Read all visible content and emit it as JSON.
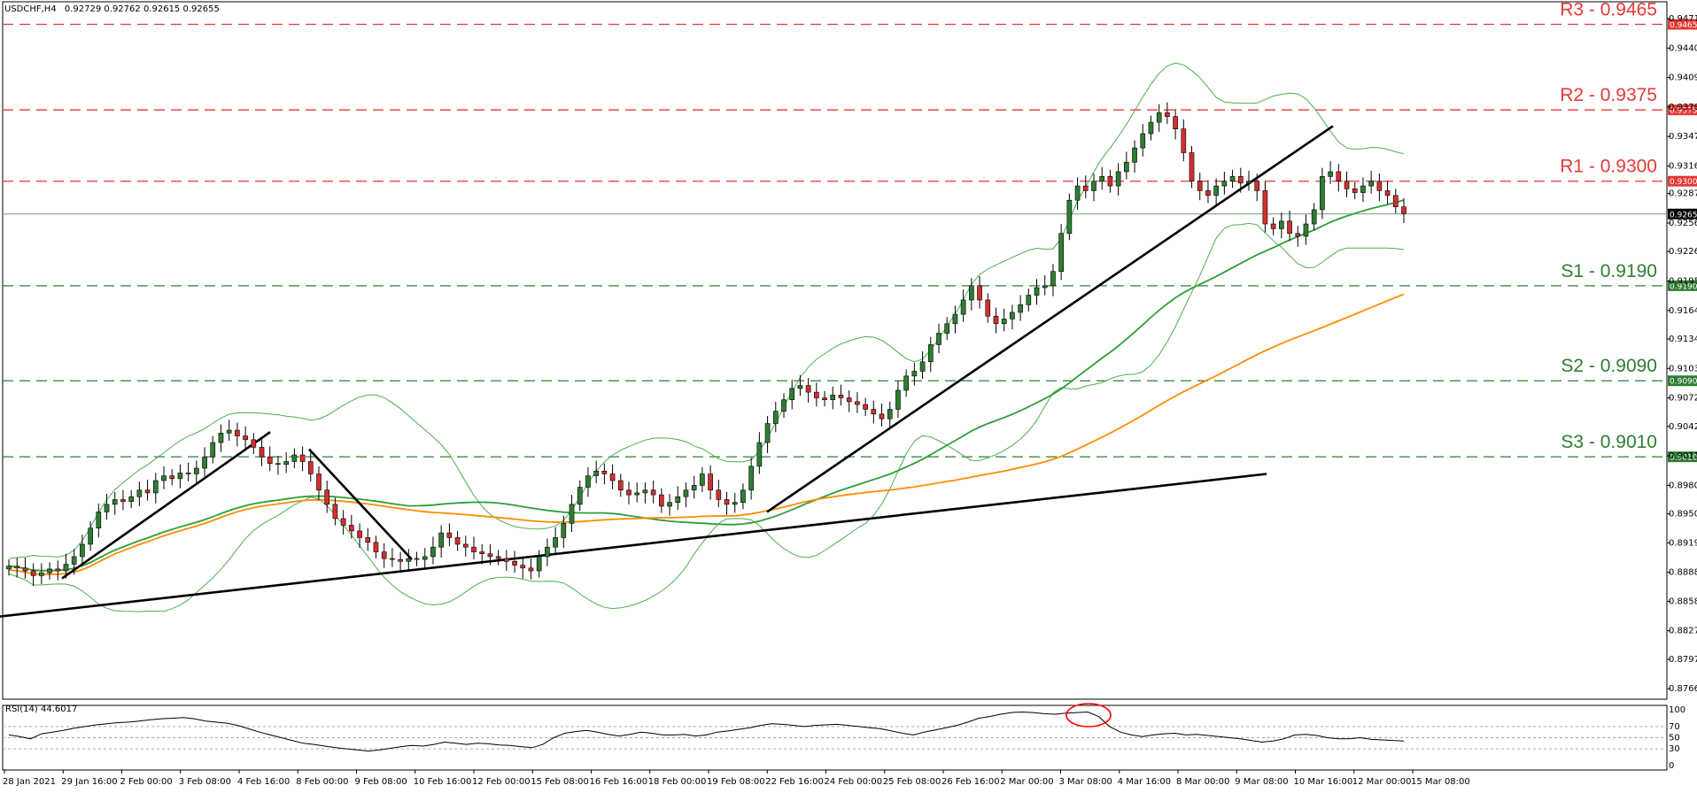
{
  "header": {
    "symbol": "USDCHF,H4",
    "ohlc": "0.92729 0.92762 0.92615 0.92655"
  },
  "rsi_header": "RSI(14) 44.6017",
  "colors": {
    "bull": "#2e7d32",
    "bear": "#d32f2f",
    "resistance": "#e53935",
    "support": "#2e7d32",
    "bands": "#4caf50",
    "ma_green": "#2e9e3a",
    "ma_orange": "#ff8c00",
    "price_line": "#7a9a7a",
    "rsi_marker": "#ff0000"
  },
  "chart_data": {
    "type": "candlestick",
    "title": "USDCHF,H4",
    "ylim": [
      0.8755,
      0.9472
    ],
    "y_ticks": [
      "0.94710",
      "0.94400",
      "0.94090",
      "0.93780",
      "0.93470",
      "0.93160",
      "0.92870",
      "0.92560",
      "0.92260",
      "0.91950",
      "0.91640",
      "0.91340",
      "0.91030",
      "0.90720",
      "0.90420",
      "0.90110",
      "0.89800",
      "0.89500",
      "0.89195",
      "0.88885",
      "0.88580",
      "0.88270",
      "0.87970",
      "0.87660"
    ],
    "x_ticks": [
      "28 Jan 2021",
      "29 Jan 16:00",
      "2 Feb 00:00",
      "3 Feb 08:00",
      "4 Feb 16:00",
      "8 Feb 00:00",
      "9 Feb 08:00",
      "10 Feb 16:00",
      "12 Feb 00:00",
      "15 Feb 08:00",
      "16 Feb 16:00",
      "18 Feb 00:00",
      "19 Feb 08:00",
      "22 Feb 16:00",
      "24 Feb 00:00",
      "25 Feb 08:00",
      "26 Feb 16:00",
      "2 Mar 00:00",
      "3 Mar 08:00",
      "4 Mar 16:00",
      "8 Mar 00:00",
      "9 Mar 08:00",
      "10 Mar 16:00",
      "12 Mar 00:00",
      "15 Mar 08:00"
    ],
    "current_price": 0.92655,
    "levels": [
      {
        "name": "R3 - 0.9465",
        "value": 0.9465,
        "tag": "0.94650",
        "kind": "resistance"
      },
      {
        "name": "R2 - 0.9375",
        "value": 0.9375,
        "tag": "0.93750",
        "kind": "resistance"
      },
      {
        "name": "R1 - 0.9300",
        "value": 0.93,
        "tag": "0.93000",
        "kind": "resistance"
      },
      {
        "name": "S1 - 0.9190",
        "value": 0.919,
        "tag": "0.91900",
        "kind": "support"
      },
      {
        "name": "S2 - 0.9090",
        "value": 0.909,
        "tag": "0.90900",
        "kind": "support"
      },
      {
        "name": "S3 - 0.9010",
        "value": 0.901,
        "tag": "0.90100",
        "kind": "support"
      }
    ],
    "price_path": [
      0.8895,
      0.8893,
      0.889,
      0.8885,
      0.8888,
      0.8892,
      0.889,
      0.8897,
      0.8905,
      0.8918,
      0.8935,
      0.8952,
      0.896,
      0.8965,
      0.8963,
      0.8968,
      0.8975,
      0.8972,
      0.8985,
      0.899,
      0.8987,
      0.8993,
      0.8992,
      0.8998,
      0.901,
      0.9025,
      0.9035,
      0.9038,
      0.9032,
      0.9028,
      0.902,
      0.901,
      0.9003,
      0.9002,
      0.9005,
      0.9012,
      0.9005,
      0.8992,
      0.8975,
      0.896,
      0.8945,
      0.8938,
      0.8932,
      0.8925,
      0.892,
      0.891,
      0.8903,
      0.8902,
      0.89,
      0.8903,
      0.8902,
      0.8905,
      0.8915,
      0.893,
      0.8925,
      0.8918,
      0.8915,
      0.891,
      0.8908,
      0.8905,
      0.8903,
      0.89,
      0.8896,
      0.8893,
      0.889,
      0.8905,
      0.8915,
      0.8925,
      0.894,
      0.896,
      0.8978,
      0.899,
      0.8995,
      0.8992,
      0.8985,
      0.8975,
      0.897,
      0.8972,
      0.8975,
      0.897,
      0.8958,
      0.8962,
      0.8968,
      0.8975,
      0.898,
      0.8992,
      0.8975,
      0.8965,
      0.896,
      0.8962,
      0.8975,
      0.9,
      0.9025,
      0.9045,
      0.9058,
      0.907,
      0.9082,
      0.9085,
      0.9078,
      0.9072,
      0.907,
      0.9075,
      0.9072,
      0.9068,
      0.9065,
      0.906,
      0.9055,
      0.905,
      0.906,
      0.908,
      0.9095,
      0.91,
      0.911,
      0.9128,
      0.914,
      0.915,
      0.916,
      0.9175,
      0.919,
      0.9175,
      0.9158,
      0.915,
      0.9155,
      0.9162,
      0.917,
      0.918,
      0.9188,
      0.919,
      0.9205,
      0.9245,
      0.928,
      0.9295,
      0.929,
      0.93,
      0.9305,
      0.9295,
      0.931,
      0.932,
      0.9335,
      0.935,
      0.9362,
      0.9372,
      0.9368,
      0.9355,
      0.933,
      0.93,
      0.929,
      0.9285,
      0.9295,
      0.93,
      0.9305,
      0.9298,
      0.93,
      0.929,
      0.9255,
      0.925,
      0.9258,
      0.9245,
      0.9242,
      0.9255,
      0.927,
      0.9305,
      0.931,
      0.93,
      0.9292,
      0.9288,
      0.9295,
      0.93,
      0.929,
      0.9285,
      0.9273,
      0.9266
    ],
    "rsi": {
      "name": "RSI(14)",
      "value": 44.6017,
      "ylim": [
        0,
        100
      ],
      "levels": [
        30,
        50,
        70
      ],
      "ticks": [
        "100",
        "70",
        "50",
        "30",
        "0"
      ],
      "values": [
        55,
        52,
        48,
        57,
        60,
        63,
        67,
        70,
        73,
        75,
        77,
        78,
        80,
        82,
        84,
        85,
        86,
        84,
        80,
        78,
        76,
        72,
        66,
        60,
        55,
        50,
        45,
        40,
        38,
        35,
        32,
        30,
        28,
        26,
        28,
        31,
        34,
        36,
        35,
        38,
        42,
        40,
        38,
        40,
        39,
        37,
        36,
        34,
        32,
        38,
        50,
        58,
        61,
        63,
        60,
        56,
        53,
        56,
        60,
        58,
        55,
        55,
        56,
        53,
        55,
        60,
        62,
        65,
        68,
        72,
        75,
        74,
        72,
        70,
        72,
        73,
        74,
        72,
        70,
        68,
        66,
        62,
        58,
        55,
        60,
        64,
        68,
        72,
        78,
        85,
        88,
        92,
        95,
        96,
        95,
        93,
        92,
        94,
        95,
        96,
        88,
        70,
        60,
        55,
        52,
        55,
        57,
        58,
        55,
        56,
        54,
        52,
        50,
        48,
        45,
        42,
        44,
        48,
        55,
        56,
        54,
        50,
        48,
        48,
        50,
        47,
        46,
        45,
        44
      ]
    },
    "annotations": [
      "RSI overbought circled near 4 Mar"
    ]
  }
}
